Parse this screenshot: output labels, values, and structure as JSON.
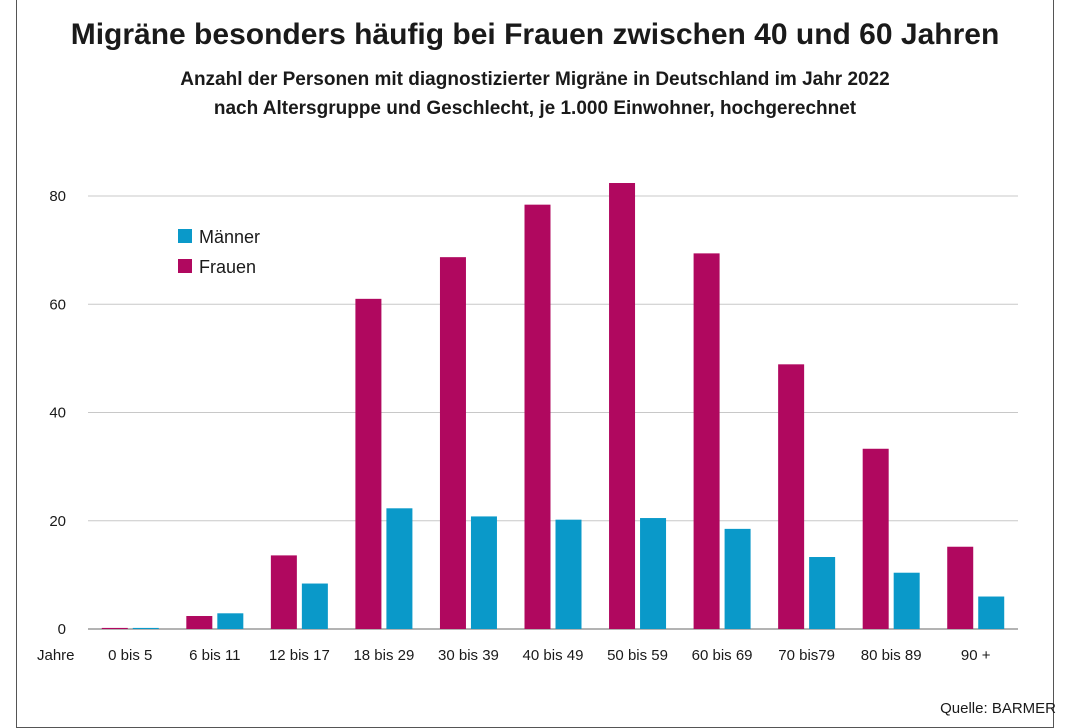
{
  "chart_data": {
    "type": "bar",
    "title": "Migräne besonders häufig bei Frauen zwischen 40 und 60 Jahren",
    "subtitle": [
      "Anzahl der Personen mit diagnostizierter Migräne in Deutschland im Jahr 2022",
      "nach Altersgruppe und Geschlecht, je 1.000 Einwohner, hochgerechnet"
    ],
    "xlabel": "Jahre",
    "ylabel": "",
    "ylim": [
      0,
      80
    ],
    "yticks": [
      0,
      20,
      40,
      60,
      80
    ],
    "grid": true,
    "legend_position": "top-left",
    "categories": [
      "0 bis 5",
      "6 bis 11",
      "12 bis 17",
      "18 bis 29",
      "30 bis 39",
      "40 bis 49",
      "50 bis 59",
      "60 bis 69",
      "70 bis79",
      "80 bis 89",
      "90 +"
    ],
    "series": [
      {
        "name": "Frauen",
        "color": "#b0085f",
        "values": [
          0.2,
          2.4,
          13.6,
          61.0,
          68.7,
          78.4,
          82.4,
          69.4,
          48.9,
          33.3,
          15.2
        ]
      },
      {
        "name": "Männer",
        "color": "#0a99c9",
        "values": [
          0.2,
          2.9,
          8.4,
          22.3,
          20.8,
          20.2,
          20.5,
          18.5,
          13.3,
          10.4,
          6.0
        ]
      }
    ],
    "legend_order": [
      "Männer",
      "Frauen"
    ],
    "source": "Quelle: BARMER"
  }
}
